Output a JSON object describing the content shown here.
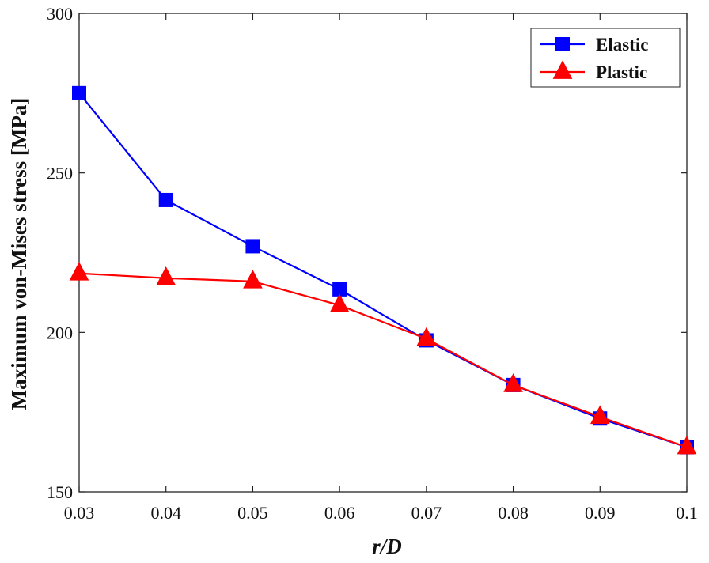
{
  "chart_data": {
    "type": "line",
    "title": "",
    "xlabel": "r/D",
    "ylabel": "Maximum von-Mises stress [MPa]",
    "x": [
      0.03,
      0.04,
      0.05,
      0.06,
      0.07,
      0.08,
      0.09,
      0.1
    ],
    "xlim": [
      0.03,
      0.1
    ],
    "ylim": [
      150,
      300
    ],
    "xticks": [
      "0.03",
      "0.04",
      "0.05",
      "0.06",
      "0.07",
      "0.08",
      "0.09",
      "0.1"
    ],
    "yticks": [
      "150",
      "200",
      "250",
      "300"
    ],
    "grid": false,
    "legend_position": "top-right",
    "series": [
      {
        "name": "Elastic",
        "color": "#0000ff",
        "marker": "square",
        "values": [
          275,
          241.5,
          227,
          213.5,
          197.5,
          183.5,
          173,
          164
        ]
      },
      {
        "name": "Plastic",
        "color": "#ff0000",
        "marker": "triangle",
        "values": [
          218.5,
          217,
          216,
          208.5,
          198,
          183.5,
          173.5,
          164
        ]
      }
    ]
  }
}
